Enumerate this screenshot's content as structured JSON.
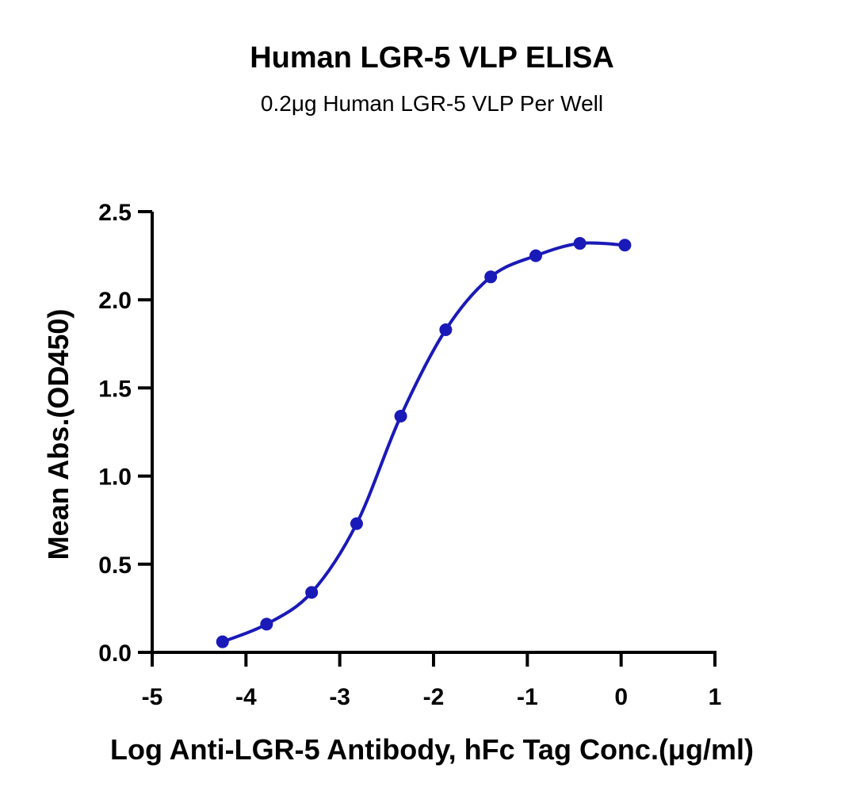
{
  "chart_data": {
    "type": "scatter",
    "title": "Human LGR-5 VLP ELISA",
    "subtitle": "0.2μg Human LGR-5 VLP Per Well",
    "xlabel": "Log Anti-LGR-5 Antibody, hFc Tag Conc.(μg/ml)",
    "ylabel": "Mean Abs.(OD450)",
    "xlim": [
      -5,
      1
    ],
    "ylim": [
      0,
      2.5
    ],
    "x_ticks": [
      "-5",
      "-4",
      "-3",
      "-2",
      "-1",
      "0",
      "1"
    ],
    "y_ticks": [
      "0.0",
      "0.5",
      "1.0",
      "1.5",
      "2.0",
      "2.5"
    ],
    "grid": false,
    "color": "#1a1ab8",
    "series": [
      {
        "x": [
          -4.25,
          -3.78,
          -3.3,
          -2.82,
          -2.35,
          -1.87,
          -1.39,
          -0.91,
          -0.44,
          0.04
        ],
        "y": [
          0.06,
          0.16,
          0.34,
          0.73,
          1.34,
          1.83,
          2.13,
          2.25,
          2.32,
          2.31
        ],
        "fit_curve": "sigmoidal (4PL)"
      }
    ]
  }
}
